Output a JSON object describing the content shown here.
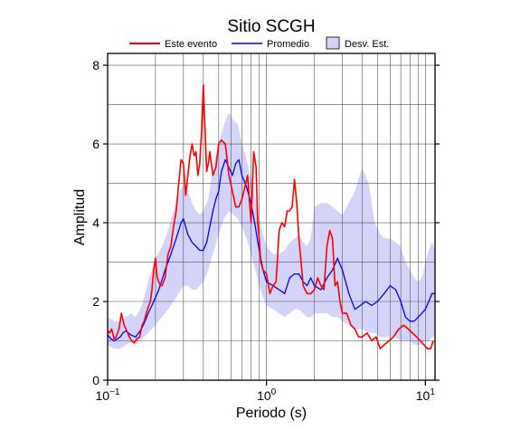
{
  "chart_data": {
    "type": "line",
    "title": "Sitio SCGH",
    "xlabel": "Periodo (s)",
    "ylabel": "Amplitud",
    "x_scale": "log",
    "xlim": [
      0.1,
      11.5
    ],
    "ylim": [
      0,
      8.3
    ],
    "grid": true,
    "legend_position": "top",
    "x_tick_labels": [
      {
        "value": 0.1,
        "base": "10",
        "exp": "−1"
      },
      {
        "value": 1,
        "base": "10",
        "exp": "0"
      },
      {
        "value": 10,
        "base": "10",
        "exp": "1"
      }
    ],
    "y_ticks": [
      0,
      2,
      4,
      6,
      8
    ],
    "legend": {
      "event_label": "Este evento",
      "mean_label": "Promedio",
      "std_label": "Desv. Est."
    },
    "colors": {
      "event": "#ff0000",
      "mean": "#0000ff",
      "std_fill": "#d4d4fb",
      "grid": "#555555"
    },
    "series": [
      {
        "name": "Este evento",
        "x": [
          0.1,
          0.103,
          0.106,
          0.11,
          0.113,
          0.118,
          0.122,
          0.127,
          0.132,
          0.137,
          0.142,
          0.147,
          0.153,
          0.159,
          0.165,
          0.17,
          0.175,
          0.18,
          0.186,
          0.19,
          0.195,
          0.2,
          0.205,
          0.21,
          0.215,
          0.22,
          0.23,
          0.24,
          0.25,
          0.26,
          0.27,
          0.28,
          0.29,
          0.3,
          0.31,
          0.32,
          0.33,
          0.34,
          0.35,
          0.36,
          0.37,
          0.38,
          0.39,
          0.4,
          0.41,
          0.42,
          0.43,
          0.44,
          0.46,
          0.48,
          0.5,
          0.52,
          0.55,
          0.58,
          0.61,
          0.64,
          0.67,
          0.7,
          0.73,
          0.76,
          0.8,
          0.83,
          0.86,
          0.88,
          0.9,
          0.92,
          0.95,
          1.0,
          1.05,
          1.1,
          1.15,
          1.2,
          1.25,
          1.3,
          1.35,
          1.4,
          1.45,
          1.5,
          1.55,
          1.6,
          1.65,
          1.7,
          1.8,
          1.9,
          2.0,
          2.1,
          2.2,
          2.3,
          2.4,
          2.5,
          2.6,
          2.7,
          2.8,
          2.9,
          3.0,
          3.2,
          3.4,
          3.6,
          3.8,
          4.0,
          4.3,
          4.6,
          4.9,
          5.2,
          5.5,
          5.9,
          6.3,
          6.8,
          7.3,
          7.8,
          8.3,
          8.8,
          9.3,
          9.8,
          10.3,
          10.8,
          11.2
        ],
        "values": [
          1.25,
          1.2,
          1.3,
          1.05,
          1.1,
          1.3,
          1.7,
          1.4,
          1.25,
          1.1,
          1.0,
          0.95,
          1.05,
          1.1,
          1.4,
          1.5,
          1.7,
          1.85,
          2.0,
          2.3,
          2.8,
          3.1,
          2.6,
          2.5,
          2.4,
          2.4,
          2.6,
          3.2,
          3.4,
          3.9,
          4.3,
          5.0,
          5.6,
          5.5,
          4.7,
          5.2,
          5.7,
          6.0,
          5.7,
          5.8,
          5.2,
          5.5,
          6.3,
          7.5,
          6.4,
          5.3,
          5.5,
          5.8,
          5.2,
          5.4,
          6.0,
          6.1,
          6.0,
          5.2,
          4.8,
          4.4,
          4.4,
          4.6,
          4.9,
          5.2,
          4.0,
          5.8,
          5.4,
          4.0,
          3.6,
          3.0,
          2.8,
          2.7,
          2.2,
          2.4,
          2.5,
          3.8,
          4.0,
          3.9,
          4.3,
          4.3,
          4.4,
          5.1,
          4.5,
          3.6,
          3.0,
          2.4,
          2.2,
          2.2,
          2.3,
          2.6,
          2.4,
          2.3,
          3.4,
          3.8,
          3.6,
          2.4,
          2.5,
          2.0,
          1.7,
          1.7,
          1.4,
          1.3,
          1.1,
          1.1,
          1.2,
          1.0,
          1.1,
          0.8,
          0.9,
          1.0,
          1.1,
          1.3,
          1.4,
          1.3,
          1.2,
          1.1,
          1.0,
          0.9,
          0.8,
          0.8,
          1.0
        ]
      },
      {
        "name": "Promedio",
        "x": [
          0.1,
          0.105,
          0.11,
          0.115,
          0.12,
          0.125,
          0.13,
          0.14,
          0.15,
          0.16,
          0.17,
          0.18,
          0.19,
          0.2,
          0.21,
          0.22,
          0.23,
          0.24,
          0.25,
          0.26,
          0.27,
          0.28,
          0.29,
          0.3,
          0.31,
          0.32,
          0.33,
          0.34,
          0.36,
          0.38,
          0.4,
          0.42,
          0.44,
          0.46,
          0.48,
          0.5,
          0.52,
          0.55,
          0.58,
          0.61,
          0.64,
          0.67,
          0.7,
          0.75,
          0.8,
          0.85,
          0.9,
          0.95,
          1.0,
          1.1,
          1.2,
          1.3,
          1.4,
          1.5,
          1.6,
          1.7,
          1.8,
          1.9,
          2.0,
          2.2,
          2.4,
          2.6,
          2.8,
          3.0,
          3.3,
          3.6,
          3.9,
          4.2,
          4.6,
          5.0,
          5.5,
          6.0,
          6.5,
          7.0,
          7.5,
          8.0,
          8.5,
          9.0,
          9.5,
          10.0,
          10.5,
          11.0,
          11.5
        ],
        "values": [
          1.15,
          1.05,
          1.0,
          1.05,
          1.1,
          1.2,
          1.25,
          1.15,
          1.1,
          1.25,
          1.45,
          1.7,
          1.9,
          2.1,
          2.3,
          2.55,
          2.8,
          3.0,
          3.2,
          3.4,
          3.6,
          3.8,
          4.0,
          4.1,
          3.9,
          3.7,
          3.6,
          3.5,
          3.4,
          3.3,
          3.3,
          3.5,
          3.9,
          4.3,
          4.6,
          4.8,
          5.3,
          5.6,
          5.4,
          5.2,
          5.5,
          5.6,
          5.2,
          4.9,
          4.5,
          3.9,
          3.3,
          2.8,
          2.5,
          2.4,
          2.3,
          2.2,
          2.6,
          2.7,
          2.7,
          2.5,
          2.4,
          2.6,
          2.4,
          2.3,
          2.6,
          2.8,
          3.1,
          2.8,
          2.2,
          1.8,
          1.9,
          2.0,
          1.9,
          2.0,
          2.2,
          2.4,
          2.3,
          2.0,
          1.6,
          1.5,
          1.5,
          1.6,
          1.7,
          1.8,
          2.0,
          2.2,
          2.2
        ]
      },
      {
        "name": "Desv. Est.",
        "x": [
          0.1,
          0.11,
          0.12,
          0.13,
          0.14,
          0.15,
          0.16,
          0.17,
          0.18,
          0.19,
          0.2,
          0.22,
          0.24,
          0.26,
          0.28,
          0.3,
          0.32,
          0.34,
          0.36,
          0.38,
          0.4,
          0.43,
          0.46,
          0.5,
          0.54,
          0.58,
          0.62,
          0.66,
          0.7,
          0.75,
          0.8,
          0.85,
          0.9,
          0.95,
          1.0,
          1.1,
          1.2,
          1.3,
          1.4,
          1.5,
          1.6,
          1.7,
          1.8,
          1.9,
          2.0,
          2.2,
          2.4,
          2.6,
          2.8,
          3.0,
          3.3,
          3.6,
          4.0,
          4.4,
          4.8,
          5.2,
          5.6,
          6.0,
          6.5,
          7.0,
          7.5,
          8.0,
          8.5,
          9.0,
          9.5,
          10.0,
          10.5,
          11.0,
          11.5
        ],
        "upper": [
          1.6,
          1.5,
          1.5,
          1.6,
          1.7,
          1.6,
          1.8,
          2.1,
          2.5,
          2.8,
          3.1,
          3.4,
          3.8,
          4.3,
          4.7,
          5.0,
          4.8,
          4.5,
          4.3,
          4.2,
          4.3,
          4.6,
          5.4,
          6.0,
          6.5,
          6.8,
          6.6,
          6.5,
          6.0,
          5.6,
          5.1,
          4.6,
          4.1,
          3.7,
          3.4,
          3.2,
          3.2,
          3.3,
          3.5,
          3.6,
          3.7,
          3.5,
          3.4,
          3.6,
          4.4,
          4.5,
          4.5,
          4.4,
          4.3,
          4.2,
          4.5,
          4.8,
          5.4,
          5.0,
          4.0,
          3.7,
          3.6,
          3.6,
          3.5,
          3.4,
          3.0,
          2.8,
          2.6,
          2.5,
          2.6,
          3.0,
          3.3,
          3.5,
          3.3
        ],
        "lower": [
          0.9,
          0.8,
          0.8,
          0.9,
          0.95,
          0.9,
          1.0,
          1.1,
          1.2,
          1.3,
          1.4,
          1.6,
          1.8,
          2.0,
          2.2,
          2.4,
          2.4,
          2.3,
          2.3,
          2.4,
          2.5,
          2.8,
          3.2,
          3.7,
          4.1,
          4.3,
          4.2,
          4.1,
          3.9,
          3.6,
          3.2,
          2.8,
          2.4,
          2.1,
          1.9,
          1.8,
          1.7,
          1.6,
          1.7,
          1.8,
          1.8,
          1.7,
          1.6,
          1.6,
          1.7,
          1.7,
          1.7,
          1.6,
          1.6,
          1.5,
          1.4,
          1.3,
          1.3,
          1.2,
          1.2,
          1.1,
          1.1,
          1.1,
          1.1,
          1.0,
          1.0,
          1.0,
          0.9,
          0.9,
          0.9,
          1.0,
          1.0,
          1.1,
          1.1
        ]
      }
    ]
  }
}
